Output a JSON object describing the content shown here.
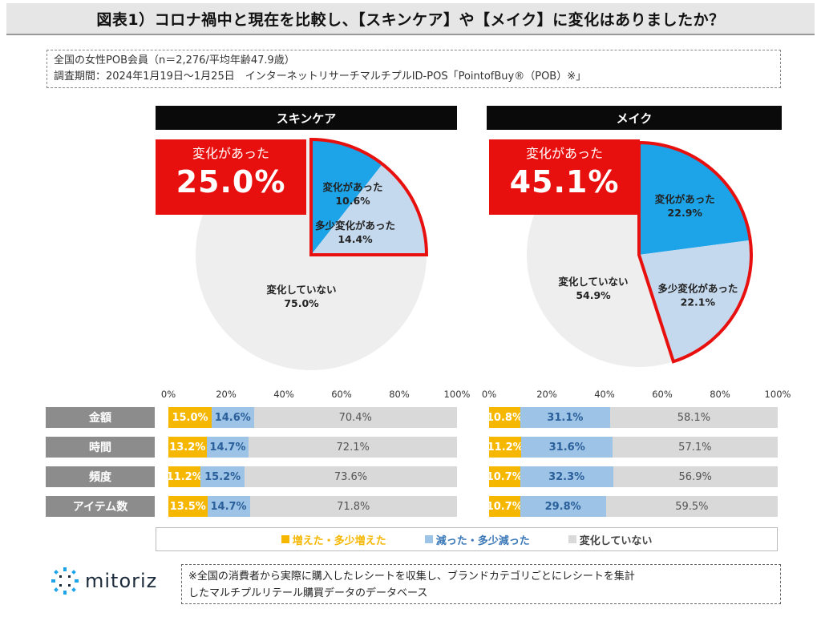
{
  "title": "図表1）コロナ禍中と現在を比較し、【スキンケア】や【メイク】に変化はありましたか？",
  "info": {
    "line1": "全国の女性POB会員（n＝2,276/平均年齢47.9歳）",
    "line2": "調査期間：2024年1月19日～1月25日　インターネットリサーチマルチプルID-POS「PointofBuy®（POB）※」"
  },
  "panels": [
    {
      "header": "スキンケア",
      "big_label": "変化があった",
      "big_value": "25.0%"
    },
    {
      "header": "メイク",
      "big_label": "変化があった",
      "big_value": "45.1%"
    }
  ],
  "colors": {
    "red": "#e8100e",
    "blue": "#1ca3e8",
    "light_blue": "#c5d9ee",
    "grey": "#eeeeee",
    "orange": "#f6b700",
    "bar_blue": "#9dc3e6",
    "bar_grey": "#d9d9d9"
  },
  "chart_data": [
    {
      "type": "pie",
      "title": "スキンケア",
      "slices": [
        {
          "label": "変化があった",
          "value": 10.6,
          "display": "10.6%"
        },
        {
          "label": "多少変化があった",
          "value": 14.4,
          "display": "14.4%"
        },
        {
          "label": "変化していない",
          "value": 75.0,
          "display": "75.0%"
        }
      ]
    },
    {
      "type": "pie",
      "title": "メイク",
      "slices": [
        {
          "label": "変化があった",
          "value": 22.9,
          "display": "22.9%"
        },
        {
          "label": "多少変化があった",
          "value": 22.1,
          "display": "22.1%"
        },
        {
          "label": "変化していない",
          "value": 54.9,
          "display": "54.9%"
        }
      ]
    },
    {
      "type": "bar",
      "stacked": true,
      "orientation": "horizontal",
      "categories": [
        "金額",
        "時間",
        "頻度",
        "アイテム数"
      ],
      "x_ticks": [
        "0%",
        "20%",
        "40%",
        "60%",
        "80%",
        "100%"
      ],
      "xlim": [
        0,
        100
      ],
      "groups": [
        {
          "name": "スキンケア",
          "series": [
            {
              "name": "増えた・多少増えた",
              "values": [
                15.0,
                13.2,
                11.2,
                13.5
              ]
            },
            {
              "name": "減った・多少減った",
              "values": [
                14.6,
                14.7,
                15.2,
                14.7
              ]
            },
            {
              "name": "変化していない",
              "values": [
                70.4,
                72.1,
                73.6,
                71.8
              ]
            }
          ]
        },
        {
          "name": "メイク",
          "series": [
            {
              "name": "増えた・多少増えた",
              "values": [
                10.8,
                11.2,
                10.7,
                10.7
              ]
            },
            {
              "name": "減った・多少減った",
              "values": [
                31.1,
                31.6,
                32.3,
                29.8
              ]
            },
            {
              "name": "変化していない",
              "values": [
                58.1,
                57.1,
                56.9,
                59.5
              ]
            }
          ]
        }
      ],
      "legend": [
        "増えた・多少増えた",
        "減った・多少減った",
        "変化していない"
      ]
    }
  ],
  "logo": {
    "text": "mitoriz"
  },
  "note": {
    "line1": "※全国の消費者から実際に購入したレシートを収集し、ブランドカテゴリごとにレシートを集計",
    "line2": "したマルチプルリテール購買データのデータベース"
  }
}
